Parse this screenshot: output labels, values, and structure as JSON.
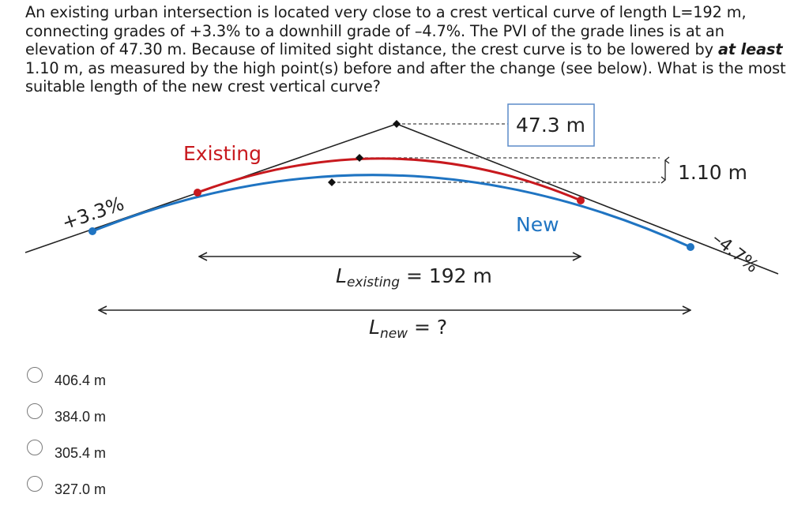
{
  "question": {
    "before_emphasis": "An existing urban intersection is located very close to a crest vertical curve of length L=192 m, connecting grades of +3.3% to a downhill grade of –4.7%. The PVI of the grade lines is at an elevation of 47.30 m. Because of limited sight distance, the crest curve is to be lowered by ",
    "emphasis": "at least",
    "after_emphasis": " 1.10 m, as measured by the high point(s) before and after the change (see below). What is the most suitable length of the new crest vertical curve?"
  },
  "diagram": {
    "label_existing": "Existing",
    "label_new": "New",
    "pvi_elevation": "47.3 m",
    "offset": "1.10 m",
    "grade_left": "+3.3%",
    "grade_right": "–4.7%",
    "l_existing_symbol": "L",
    "l_existing_sub": "existing",
    "l_existing_rest": " = 192 m",
    "l_new_symbol": "L",
    "l_new_sub": "new",
    "l_new_rest": " = ?",
    "colors": {
      "existing": "#c8191e",
      "new": "#1f74c2",
      "grade": "#222222",
      "box_border": "#5b8bc9"
    }
  },
  "options": [
    {
      "label": "406.4 m"
    },
    {
      "label": "384.0 m"
    },
    {
      "label": "305.4 m"
    },
    {
      "label": "327.0 m"
    }
  ]
}
